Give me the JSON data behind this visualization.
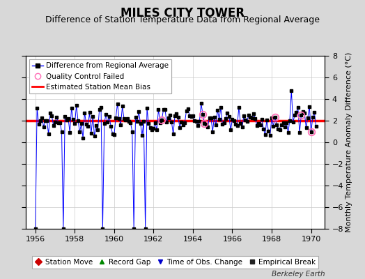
{
  "title": "MILES CITY TOWER",
  "subtitle": "Difference of Station Temperature Data from Regional Average",
  "ylabel": "Monthly Temperature Anomaly Difference (°C)",
  "xlim": [
    1955.5,
    1970.7
  ],
  "ylim": [
    -8,
    8
  ],
  "yticks": [
    -8,
    -6,
    -4,
    -2,
    0,
    2,
    4,
    6,
    8
  ],
  "xticks": [
    1956,
    1958,
    1960,
    1962,
    1964,
    1966,
    1968,
    1970
  ],
  "bias_value": 2.0,
  "fig_bg_color": "#d8d8d8",
  "plot_bg_color": "#ffffff",
  "line_color": "#0000ff",
  "dot_color": "#000000",
  "bias_color": "#ff0000",
  "qc_color": "#ff69b4",
  "grid_color": "#cccccc",
  "legend_line_label": "Difference from Regional Average",
  "legend_qc_label": "Quality Control Failed",
  "legend_bias_label": "Estimated Station Mean Bias",
  "legend_station_label": "Station Move",
  "legend_gap_label": "Record Gap",
  "legend_tobs_label": "Time of Obs. Change",
  "legend_break_label": "Empirical Break",
  "title_fontsize": 12,
  "subtitle_fontsize": 9,
  "tick_fontsize": 8,
  "ylabel_fontsize": 8,
  "berkeley_text": "Berkeley Earth"
}
